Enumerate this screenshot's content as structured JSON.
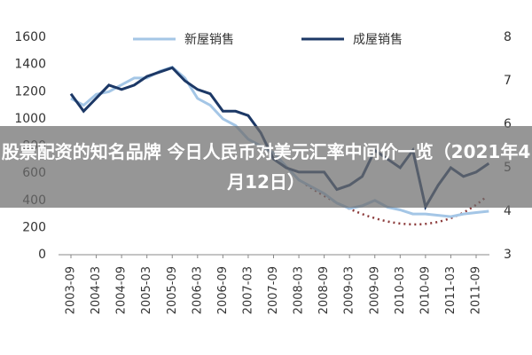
{
  "chart_data": {
    "type": "line",
    "categories": [
      "2003-09",
      null,
      "2004-03",
      null,
      "2004-09",
      null,
      "2005-03",
      null,
      "2005-09",
      null,
      "2006-03",
      null,
      "2006-09",
      null,
      "2007-03",
      null,
      "2007-09",
      null,
      "2008-03",
      null,
      "2008-09",
      null,
      "2009-03",
      null,
      "2009-09",
      null,
      "2010-03",
      null,
      "2010-09",
      null,
      "2011-03",
      null,
      "2011-09",
      null
    ],
    "series": [
      {
        "name": "新屋销售",
        "color": "#a4c6e6",
        "values": [
          1150,
          1100,
          1180,
          1200,
          1250,
          1300,
          1300,
          1350,
          1380,
          1300,
          1150,
          1100,
          1000,
          950,
          850,
          800,
          750,
          650,
          550,
          500,
          450,
          380,
          340,
          360,
          400,
          350,
          330,
          300,
          300,
          290,
          280,
          300,
          310,
          320
        ]
      },
      {
        "name": "成屋销售",
        "color": "#1c3866",
        "axis": "y2",
        "values": [
          6.7,
          6.3,
          6.6,
          6.9,
          6.8,
          6.9,
          7.1,
          7.2,
          7.3,
          7.0,
          6.8,
          6.7,
          6.3,
          6.3,
          6.2,
          5.8,
          5.2,
          5.0,
          4.9,
          4.9,
          4.9,
          4.5,
          4.6,
          4.8,
          5.4,
          5.2,
          5.0,
          5.4,
          4.1,
          4.6,
          5.0,
          4.8,
          4.9,
          5.1
        ]
      }
    ],
    "ylim": [
      0,
      1600
    ],
    "yticks": [
      0,
      200,
      400,
      600,
      800,
      1000,
      1200,
      1400,
      1600
    ],
    "y2lim": [
      3,
      8
    ],
    "y2ticks": [
      3,
      4,
      5,
      6,
      7,
      8
    ],
    "legend": "top"
  },
  "overlay_title": "股票配资的知名品牌 今日人民币对美元汇率中间价一览（2021年4月12日）"
}
